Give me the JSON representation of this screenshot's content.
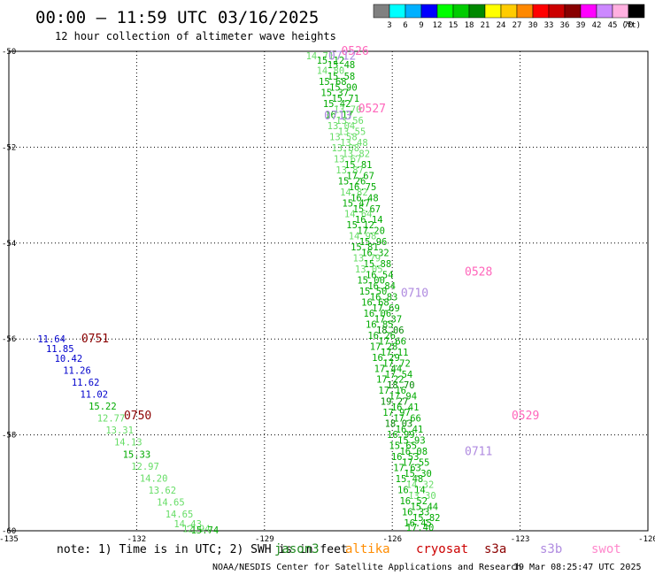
{
  "chart_data": {
    "type": "scatter",
    "title": "00:00 – 11:59 UTC 03/16/2025",
    "subtitle": "12 hour collection of altimeter wave heights",
    "xlabel": "",
    "ylabel": "",
    "xlim": [
      -135,
      -120
    ],
    "ylim": [
      -60,
      -50
    ],
    "x_ticks": [
      "-135",
      "-132",
      "-129",
      "-126",
      "-123",
      "-120"
    ],
    "y_ticks": [
      "-50",
      "-52",
      "-54",
      "-56",
      "-58",
      "-60"
    ],
    "grid": true,
    "colorbar": {
      "ticks": [
        "3",
        "6",
        "9",
        "12",
        "15",
        "18",
        "21",
        "24",
        "27",
        "30",
        "33",
        "36",
        "39",
        "42",
        "45",
        "70"
      ],
      "unit": "(ft)",
      "colors": [
        "#808080",
        "#00ffff",
        "#00b0ff",
        "#0000ff",
        "#00ff00",
        "#00cc00",
        "#008800",
        "#ffff00",
        "#ffcc00",
        "#ff8800",
        "#ff0000",
        "#cc0000",
        "#880000",
        "#ff00ff",
        "#cc88ff",
        "#ffb0e0",
        "#000000"
      ]
    },
    "series": [
      {
        "name": "jason3",
        "color": "#228b22",
        "points": [
          [
            -127.7,
            -50.09,
            "14.71"
          ],
          [
            -127.45,
            -50.18,
            "15.12"
          ],
          [
            -127.2,
            -50.28,
            "15.48"
          ],
          [
            -127.45,
            -50.4,
            "14.80"
          ],
          [
            -127.2,
            -50.52,
            "15.58"
          ],
          [
            -127.4,
            -50.63,
            "15.68"
          ],
          [
            -127.15,
            -50.75,
            "15.90"
          ],
          [
            -127.35,
            -50.86,
            "15.37"
          ],
          [
            -127.1,
            -50.98,
            "15.71"
          ],
          [
            -127.3,
            -51.09,
            "15.42"
          ],
          [
            -127.05,
            -51.21,
            "13.70"
          ],
          [
            -127.25,
            -51.32,
            "16.17"
          ],
          [
            -127.0,
            -51.44,
            "13.56"
          ],
          [
            -127.2,
            -51.55,
            "13.04"
          ],
          [
            -126.95,
            -51.67,
            "13.55"
          ],
          [
            -127.15,
            -51.78,
            "13.58"
          ],
          [
            -126.9,
            -51.9,
            "13.48"
          ],
          [
            -127.1,
            -52.01,
            "13.88"
          ],
          [
            -126.85,
            -52.13,
            "13.82"
          ],
          [
            -127.05,
            -52.24,
            "13.67"
          ],
          [
            -126.8,
            -52.36,
            "15.81"
          ],
          [
            -127.0,
            -52.47,
            "13.87"
          ],
          [
            -126.75,
            -52.59,
            "17.67"
          ],
          [
            -126.95,
            -52.7,
            "15.26"
          ],
          [
            -126.7,
            -52.82,
            "16.75"
          ],
          [
            -126.9,
            -52.93,
            "14.82"
          ],
          [
            -126.65,
            -53.05,
            "16.48"
          ],
          [
            -126.85,
            -53.16,
            "15.47"
          ],
          [
            -126.6,
            -53.28,
            "15.67"
          ],
          [
            -126.8,
            -53.39,
            "14.64"
          ],
          [
            -126.55,
            -53.51,
            "16.14"
          ],
          [
            -126.75,
            -53.62,
            "15.12"
          ],
          [
            -126.5,
            -53.74,
            "17.20"
          ],
          [
            -126.7,
            -53.85,
            "14.98"
          ],
          [
            -126.45,
            -53.97,
            "15.96"
          ],
          [
            -126.65,
            -54.08,
            "15.81"
          ],
          [
            -126.4,
            -54.2,
            "16.32"
          ],
          [
            -126.6,
            -54.31,
            "13.79"
          ],
          [
            -126.35,
            -54.43,
            "15.88"
          ],
          [
            -126.55,
            -54.54,
            "13.05"
          ],
          [
            -126.3,
            -54.66,
            "16.54"
          ],
          [
            -126.5,
            -54.77,
            "15.00"
          ],
          [
            -126.25,
            -54.89,
            "16.84"
          ],
          [
            -126.45,
            -55.0,
            "15.50"
          ],
          [
            -126.2,
            -55.12,
            "16.83"
          ],
          [
            -126.4,
            -55.23,
            "16.68"
          ],
          [
            -126.15,
            -55.35,
            "17.69"
          ],
          [
            -126.35,
            -55.46,
            "16.06"
          ],
          [
            -126.1,
            -55.58,
            "17.37"
          ],
          [
            -126.3,
            -55.69,
            "16.85"
          ],
          [
            -126.05,
            -55.81,
            "18.06"
          ],
          [
            -126.25,
            -55.92,
            "16.26"
          ],
          [
            -126.0,
            -56.04,
            "17.66"
          ],
          [
            -126.2,
            -56.15,
            "17.28"
          ],
          [
            -125.95,
            -56.27,
            "17.11"
          ],
          [
            -126.15,
            -56.38,
            "16.29"
          ],
          [
            -125.9,
            -56.5,
            "17.72"
          ],
          [
            -126.1,
            -56.61,
            "17.44"
          ],
          [
            -125.85,
            -56.73,
            "17.54"
          ],
          [
            -126.05,
            -56.84,
            "17.22"
          ],
          [
            -125.8,
            -56.96,
            "18.70"
          ],
          [
            -126.0,
            -57.07,
            "17.16"
          ],
          [
            -125.75,
            -57.19,
            "17.94"
          ],
          [
            -125.95,
            -57.3,
            "19.27"
          ],
          [
            -125.7,
            -57.42,
            "16.41"
          ],
          [
            -125.9,
            -57.53,
            "17.97"
          ],
          [
            -125.65,
            -57.65,
            "17.66"
          ],
          [
            -125.85,
            -57.76,
            "18.03"
          ],
          [
            -125.6,
            -57.88,
            "16.41"
          ],
          [
            -125.8,
            -57.99,
            "16.99"
          ],
          [
            -125.55,
            -58.11,
            "15.93"
          ],
          [
            -125.75,
            -58.22,
            "15.65"
          ],
          [
            -125.5,
            -58.34,
            "16.08"
          ],
          [
            -125.7,
            -58.45,
            "16.53"
          ],
          [
            -125.45,
            -58.57,
            "17.55"
          ],
          [
            -125.65,
            -58.68,
            "17.63"
          ],
          [
            -125.4,
            -58.8,
            "15.30"
          ],
          [
            -125.6,
            -58.91,
            "15.48"
          ],
          [
            -125.35,
            -59.03,
            "14.32"
          ],
          [
            -125.55,
            -59.14,
            "16.14"
          ],
          [
            -125.3,
            -59.26,
            "13.30"
          ],
          [
            -125.5,
            -59.37,
            "16.52"
          ],
          [
            -125.25,
            -59.49,
            "15.44"
          ],
          [
            -125.45,
            -59.6,
            "16.33"
          ],
          [
            -125.2,
            -59.72,
            "15.82"
          ],
          [
            -125.4,
            -59.83,
            "16.45"
          ],
          [
            -125.35,
            -59.93,
            "17.40"
          ]
        ]
      },
      {
        "name": "altika",
        "color": "#ff8c00",
        "points": []
      },
      {
        "name": "cryosat",
        "color": "#cc0000",
        "points": []
      },
      {
        "name": "s3a",
        "color": "#8b0000",
        "points": [
          [
            -134.0,
            -56.0,
            "11.64"
          ],
          [
            -133.8,
            -56.2,
            "11.85"
          ],
          [
            -133.6,
            -56.4,
            "10.42"
          ],
          [
            -133.4,
            -56.65,
            "11.26"
          ],
          [
            -133.2,
            -56.9,
            "11.62"
          ],
          [
            -133.0,
            -57.15,
            "11.02"
          ],
          [
            -132.8,
            -57.4,
            "15.22"
          ],
          [
            -132.6,
            -57.65,
            "12.77"
          ],
          [
            -132.4,
            -57.9,
            "13.31"
          ],
          [
            -132.2,
            -58.15,
            "14.13"
          ],
          [
            -132.0,
            -58.4,
            "15.33"
          ],
          [
            -131.8,
            -58.65,
            "12.97"
          ],
          [
            -131.6,
            -58.9,
            "14.20"
          ],
          [
            -131.4,
            -59.15,
            "13.62"
          ],
          [
            -131.2,
            -59.4,
            "14.65"
          ],
          [
            -131.0,
            -59.65,
            "14.65"
          ],
          [
            -130.8,
            -59.85,
            "14.43"
          ],
          [
            -130.6,
            -59.95,
            "12.94"
          ],
          [
            -130.4,
            -59.98,
            "15.74"
          ]
        ]
      },
      {
        "name": "s3b",
        "color": "#b08be0",
        "points": []
      },
      {
        "name": "swot",
        "color": "#ff88cc",
        "points": []
      }
    ],
    "time_labels": [
      {
        "text": "0526",
        "x": -127.2,
        "y": -50.0,
        "color": "#ff66bb"
      },
      {
        "text": "0527",
        "x": -126.8,
        "y": -51.2,
        "color": "#ff66bb"
      },
      {
        "text": "0528",
        "x": -124.3,
        "y": -54.6,
        "color": "#ff66bb"
      },
      {
        "text": "0529",
        "x": -123.2,
        "y": -57.6,
        "color": "#ff66bb"
      },
      {
        "text": "0712",
        "x": -127.5,
        "y": -50.1,
        "color": "#b08be0"
      },
      {
        "text": "0713",
        "x": -127.6,
        "y": -51.35,
        "color": "#b08be0"
      },
      {
        "text": "0710",
        "x": -125.8,
        "y": -55.05,
        "color": "#b08be0"
      },
      {
        "text": "0711",
        "x": -124.3,
        "y": -58.35,
        "color": "#b08be0"
      },
      {
        "text": "0751",
        "x": -133.3,
        "y": -56.0,
        "color": "#8b0000"
      },
      {
        "text": "0750",
        "x": -132.3,
        "y": -57.6,
        "color": "#8b0000"
      }
    ]
  },
  "legend": {
    "note": "note: 1) Time is in UTC; 2) SWH is in feet",
    "items": [
      {
        "label": "jason3",
        "color": "#228b22"
      },
      {
        "label": "altika",
        "color": "#ff8c00"
      },
      {
        "label": "cryosat",
        "color": "#cc0000"
      },
      {
        "label": "s3a",
        "color": "#8b0000"
      },
      {
        "label": "s3b",
        "color": "#b08be0"
      },
      {
        "label": "swot",
        "color": "#ff88cc"
      }
    ]
  },
  "footer": {
    "credit": "NOAA/NESDIS Center for Satellite Applications and Research",
    "timestamp": "19 Mar 08:25:47 UTC 2025"
  }
}
